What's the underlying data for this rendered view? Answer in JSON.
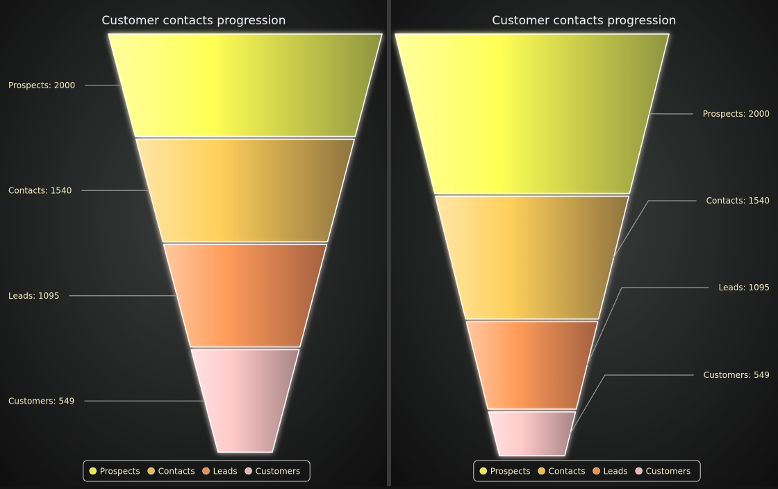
{
  "theme": {
    "background": "#141414",
    "text": "#f2f2f2",
    "label_text": "#f2ebc0",
    "connector": "#9a9a9a",
    "divider": "#3a3a3a"
  },
  "chart_data": [
    {
      "type": "funnel",
      "variant": "height-uniform",
      "title": "Customer contacts progression",
      "categories": [
        "Prospects",
        "Contacts",
        "Leads",
        "Customers"
      ],
      "values": [
        2000,
        1540,
        1095,
        549
      ],
      "labels": [
        "Prospects: 2000",
        "Contacts: 1540",
        "Leads: 1095",
        "Customers: 549"
      ],
      "label_side": "left",
      "legend": {
        "position": "bottom",
        "items": [
          "Prospects",
          "Contacts",
          "Leads",
          "Customers"
        ]
      }
    },
    {
      "type": "funnel",
      "variant": "height-proportional",
      "title": "Customer contacts progression",
      "categories": [
        "Prospects",
        "Contacts",
        "Leads",
        "Customers"
      ],
      "values": [
        2000,
        1540,
        1095,
        549
      ],
      "labels": [
        "Prospects: 2000",
        "Contacts: 1540",
        "Leads: 1095",
        "Customers: 549"
      ],
      "label_side": "right",
      "legend": {
        "position": "bottom",
        "items": [
          "Prospects",
          "Contacts",
          "Leads",
          "Customers"
        ]
      }
    }
  ],
  "series_colors": [
    {
      "name": "Prospects",
      "light": "#ffffa0",
      "mid": "#ffff55",
      "dark": "#8e9440"
    },
    {
      "name": "Contacts",
      "light": "#ffe6a8",
      "mid": "#ffd05a",
      "dark": "#8e7340"
    },
    {
      "name": "Leads",
      "light": "#ffc8a0",
      "mid": "#ff9c5a",
      "dark": "#a36040"
    },
    {
      "name": "Customers",
      "light": "#ffe2e2",
      "mid": "#ffcaca",
      "dark": "#a88484"
    }
  ]
}
